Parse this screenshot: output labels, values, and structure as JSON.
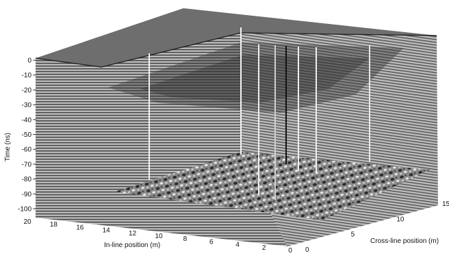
{
  "figure": {
    "y_axis": {
      "title": "Time (ns)",
      "ticks": [
        "0",
        "-10",
        "-20",
        "-30",
        "-40",
        "-50",
        "-60",
        "-70",
        "-80",
        "-90",
        "-100"
      ]
    },
    "inline_axis": {
      "title": "In-line position (m)",
      "ticks": [
        "20",
        "18",
        "16",
        "14",
        "12",
        "10",
        "8",
        "6",
        "4",
        "2",
        "0"
      ]
    },
    "crossline_axis": {
      "title": "Cross-line position (m)",
      "ticks": [
        "0",
        "5",
        "10",
        "15"
      ]
    },
    "colors": {
      "top_surface": "#6e6e6e",
      "volume_face": "#8c8c8c",
      "slice_dark": "#2a2a2a",
      "background": "#ffffff"
    }
  }
}
